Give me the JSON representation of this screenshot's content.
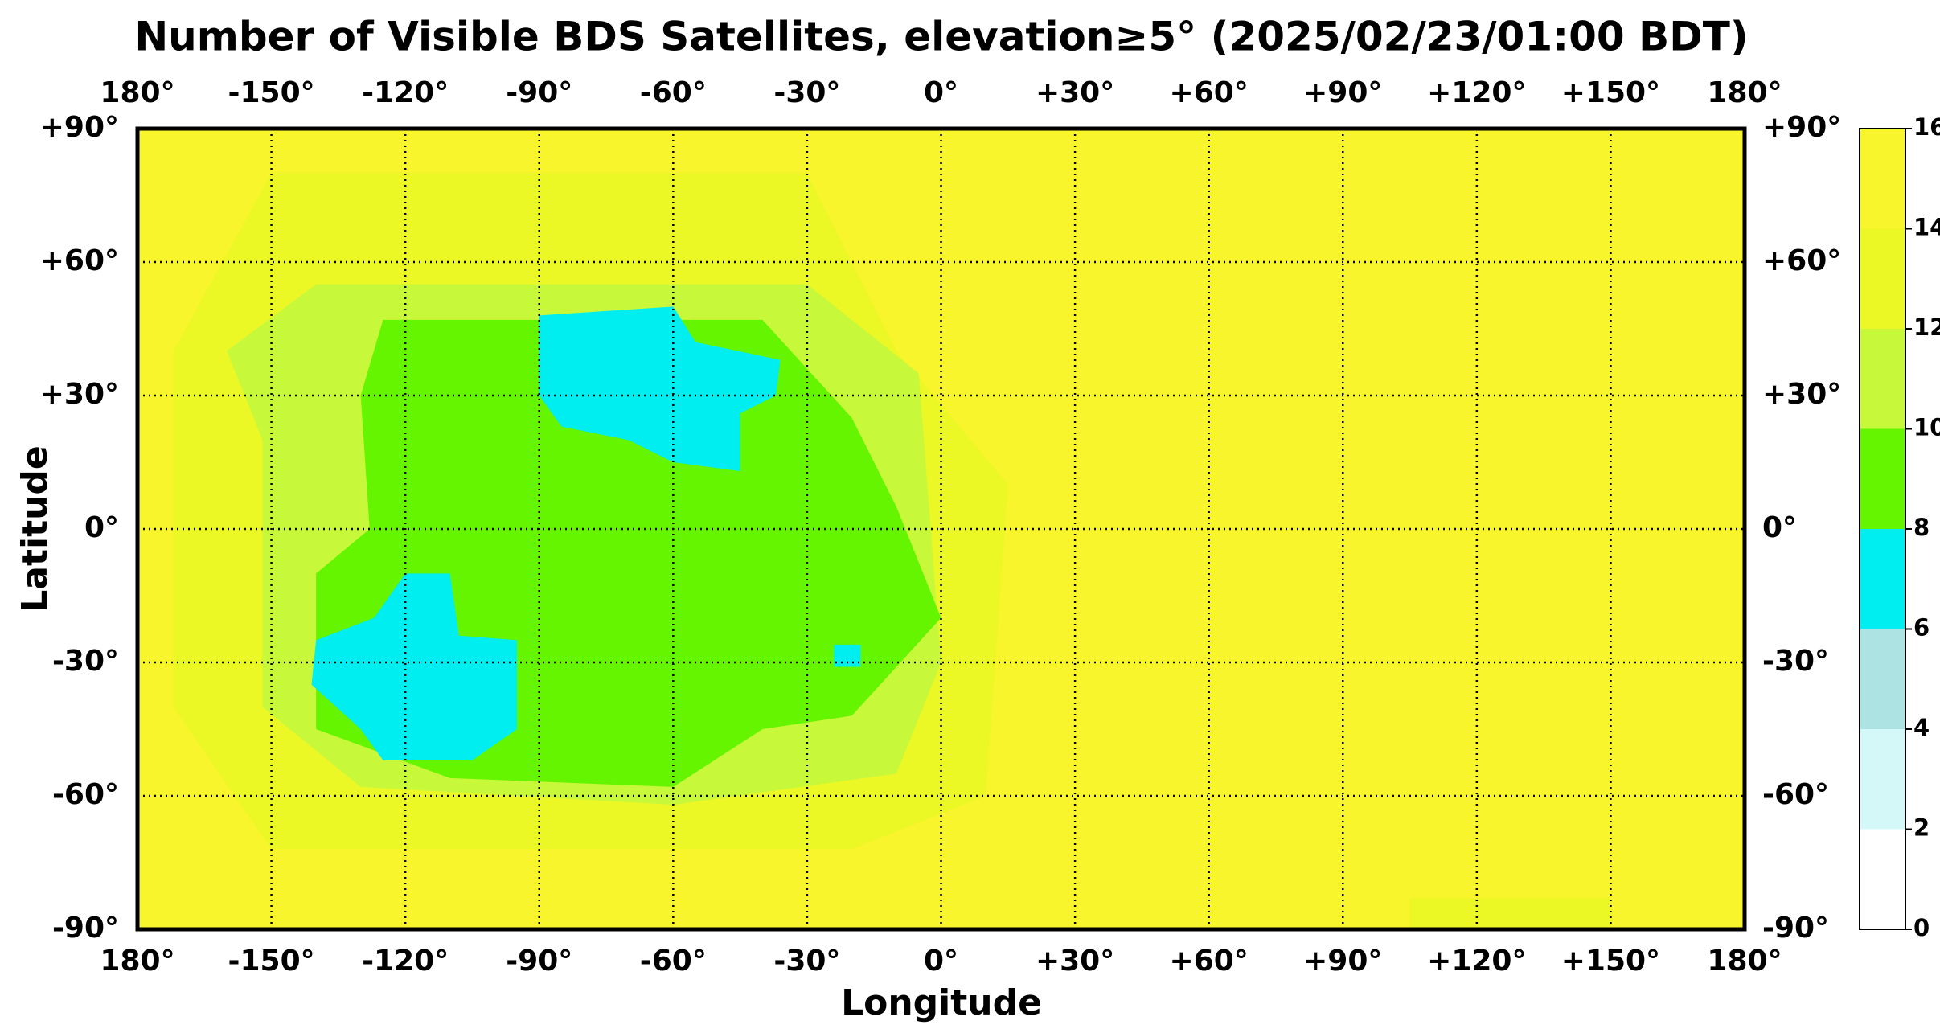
{
  "chart_data": {
    "type": "map",
    "title": "Number of Visible BDS Satellites, elevation≥5° (2025/02/23/01:00 BDT)",
    "x_label": "Longitude",
    "y_label": "Latitude",
    "xlim": [
      -180,
      180
    ],
    "ylim": [
      -90,
      90
    ],
    "xticks": [
      {
        "value": -180,
        "label": "180°"
      },
      {
        "value": -150,
        "label": "-150°"
      },
      {
        "value": -120,
        "label": "-120°"
      },
      {
        "value": -90,
        "label": "-90°"
      },
      {
        "value": -60,
        "label": "-60°"
      },
      {
        "value": -30,
        "label": "-30°"
      },
      {
        "value": 0,
        "label": "0°"
      },
      {
        "value": 30,
        "label": "+30°"
      },
      {
        "value": 60,
        "label": "+60°"
      },
      {
        "value": 90,
        "label": "+90°"
      },
      {
        "value": 120,
        "label": "+120°"
      },
      {
        "value": 150,
        "label": "+150°"
      },
      {
        "value": 180,
        "label": "180°"
      }
    ],
    "yticks": [
      {
        "value": 90,
        "label": "+90°"
      },
      {
        "value": 60,
        "label": "+60°"
      },
      {
        "value": 30,
        "label": "+30°"
      },
      {
        "value": 0,
        "label": "0°"
      },
      {
        "value": -30,
        "label": "-30°"
      },
      {
        "value": -60,
        "label": "-60°"
      },
      {
        "value": -90,
        "label": "-90°"
      }
    ],
    "grid": true,
    "background_value": 15,
    "colorbar": {
      "ticks": [
        0,
        2,
        4,
        6,
        8,
        10,
        12,
        14,
        16
      ],
      "colors": [
        "#ffffff",
        "#d4f8f8",
        "#aee3e3",
        "#00eef0",
        "#66f500",
        "#c8f83a",
        "#ecf726",
        "#f8f52c"
      ]
    },
    "regions": [
      {
        "value": 13,
        "polygon": [
          [
            -150,
            80
          ],
          [
            -30,
            80
          ],
          [
            -10,
            40
          ],
          [
            15,
            10
          ],
          [
            10,
            -60
          ],
          [
            -20,
            -72
          ],
          [
            -150,
            -72
          ],
          [
            -172,
            -40
          ],
          [
            -172,
            40
          ]
        ]
      },
      {
        "value": 11,
        "polygon": [
          [
            -140,
            55
          ],
          [
            -30,
            55
          ],
          [
            -5,
            35
          ],
          [
            0,
            -30
          ],
          [
            -10,
            -55
          ],
          [
            -60,
            -62
          ],
          [
            -130,
            -58
          ],
          [
            -152,
            -40
          ],
          [
            -152,
            20
          ],
          [
            -160,
            40
          ]
        ]
      },
      {
        "value": 9,
        "polygon": [
          [
            -125,
            47
          ],
          [
            -40,
            47
          ],
          [
            -20,
            25
          ],
          [
            -10,
            5
          ],
          [
            0,
            -20
          ],
          [
            -20,
            -42
          ],
          [
            -40,
            -45
          ],
          [
            -60,
            -58
          ],
          [
            -110,
            -56
          ],
          [
            -140,
            -45
          ],
          [
            -140,
            -10
          ],
          [
            -128,
            0
          ],
          [
            -130,
            30
          ]
        ]
      },
      {
        "value": 7,
        "polygon": [
          [
            -90,
            48
          ],
          [
            -60,
            50
          ],
          [
            -55,
            42
          ],
          [
            -36,
            38
          ],
          [
            -37,
            30
          ],
          [
            -45,
            26
          ],
          [
            -45,
            13
          ],
          [
            -60,
            15
          ],
          [
            -70,
            20
          ],
          [
            -85,
            23
          ],
          [
            -90,
            30
          ]
        ]
      },
      {
        "value": 7,
        "polygon": [
          [
            -120,
            -10
          ],
          [
            -110,
            -10
          ],
          [
            -108,
            -24
          ],
          [
            -95,
            -25
          ],
          [
            -95,
            -45
          ],
          [
            -105,
            -52
          ],
          [
            -125,
            -52
          ],
          [
            -130,
            -45
          ],
          [
            -141,
            -35
          ],
          [
            -140,
            -25
          ],
          [
            -127,
            -20
          ]
        ]
      },
      {
        "value": 7,
        "polygon": [
          [
            -24,
            -26
          ],
          [
            -18,
            -26
          ],
          [
            -18,
            -31
          ],
          [
            -24,
            -31
          ]
        ]
      },
      {
        "value": 13,
        "polygon": [
          [
            105,
            -83
          ],
          [
            150,
            -83
          ],
          [
            150,
            -90
          ],
          [
            105,
            -90
          ]
        ]
      }
    ]
  }
}
